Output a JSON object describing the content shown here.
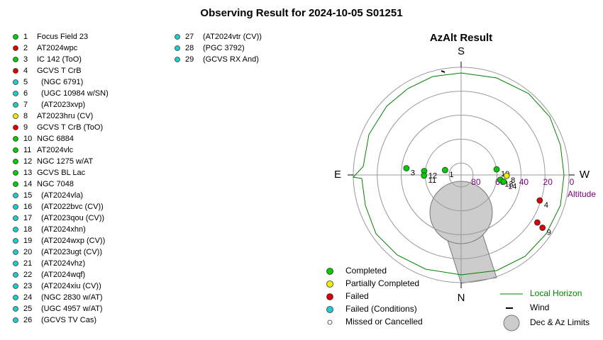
{
  "title": "Observing Result for 2024-10-05 S01251",
  "targets": [
    {
      "number": "1",
      "name": "Focus Field 23",
      "color": "#00cc00"
    },
    {
      "number": "2",
      "name": "AT2024wpc",
      "color": "#dd0000"
    },
    {
      "number": "3",
      "name": "IC 142 (ToO)",
      "color": "#00cc00"
    },
    {
      "number": "4",
      "name": "GCVS T CrB",
      "color": "#dd0000"
    },
    {
      "number": "5",
      "name": "(NGC 6791)",
      "color": "#22cccc"
    },
    {
      "number": "6",
      "name": "(UGC 10984 w/SN)",
      "color": "#22cccc"
    },
    {
      "number": "7",
      "name": "(AT2023xvp)",
      "color": "#22cccc"
    },
    {
      "number": "8",
      "name": "AT2023hru (CV)",
      "color": "#eeee00"
    },
    {
      "number": "9",
      "name": "GCVS T CrB (ToO)",
      "color": "#dd0000"
    },
    {
      "number": "10",
      "name": "NGC 6884",
      "color": "#00cc00"
    },
    {
      "number": "11",
      "name": "AT2024vlc",
      "color": "#00cc00"
    },
    {
      "number": "12",
      "name": "NGC 1275 w/AT",
      "color": "#00cc00"
    },
    {
      "number": "13",
      "name": "GCVS BL Lac",
      "color": "#00cc00"
    },
    {
      "number": "14",
      "name": "NGC 7048",
      "color": "#00cc00"
    },
    {
      "number": "15",
      "name": "(AT2024vla)",
      "color": "#22cccc"
    },
    {
      "number": "16",
      "name": "(AT2022bvc (CV))",
      "color": "#22cccc"
    },
    {
      "number": "17",
      "name": "(AT2023qou (CV))",
      "color": "#22cccc"
    },
    {
      "number": "18",
      "name": "(AT2024xhn)",
      "color": "#22cccc"
    },
    {
      "number": "19",
      "name": "(AT2024wxp (CV))",
      "color": "#22cccc"
    },
    {
      "number": "20",
      "name": "(AT2023ugt (CV))",
      "color": "#22cccc"
    },
    {
      "number": "21",
      "name": "(AT2024vhz)",
      "color": "#22cccc"
    },
    {
      "number": "22",
      "name": "(AT2024wqf)",
      "color": "#22cccc"
    },
    {
      "number": "23",
      "name": "(AT2024xiu (CV))",
      "color": "#22cccc"
    },
    {
      "number": "24",
      "name": "(NGC 2830 w/AT)",
      "color": "#22cccc"
    },
    {
      "number": "25",
      "name": "(UGC 4957 w/AT)",
      "color": "#22cccc"
    },
    {
      "number": "26",
      "name": "(GCVS TV Cas)",
      "color": "#22cccc"
    },
    {
      "number": "27",
      "name": "(AT2024vtr (CV))",
      "color": "#22cccc"
    },
    {
      "number": "28",
      "name": "(PGC 3792)",
      "color": "#22cccc"
    },
    {
      "number": "29",
      "name": "(GCVS RX And)",
      "color": "#22cccc"
    }
  ],
  "chart_data": {
    "type": "polar",
    "title": "AzAlt Result",
    "r_label": "Altitude",
    "rlim": [
      90,
      0
    ],
    "rticks": [
      80,
      60,
      40,
      20,
      0
    ],
    "directions": [
      {
        "label": "S",
        "az": 180
      },
      {
        "label": "N",
        "az": 0
      },
      {
        "label": "E",
        "az": 90
      },
      {
        "label": "W",
        "az": 270
      }
    ],
    "points": [
      {
        "label": "1",
        "az": 107,
        "alt": 76,
        "color": "#00cc00"
      },
      {
        "label": "3",
        "az": 97,
        "alt": 44,
        "color": "#00cc00"
      },
      {
        "label": "12",
        "az": 96,
        "alt": 59,
        "color": "#00cc00"
      },
      {
        "label": "11",
        "az": 89,
        "alt": 59,
        "color": "#00cc00"
      },
      {
        "label": "10",
        "az": 261,
        "alt": 60,
        "color": "#00cc00"
      },
      {
        "label": "8",
        "az": 271,
        "alt": 52,
        "color": "#eeee00"
      },
      {
        "label": "13",
        "az": 277,
        "alt": 57,
        "color": "#00cc00"
      },
      {
        "label": "14",
        "az": 279,
        "alt": 54,
        "color": "#00cc00"
      },
      {
        "label": "4",
        "az": 288,
        "alt": 21,
        "color": "#dd0000"
      },
      {
        "az": 302,
        "alt": 15,
        "color": "#dd0000"
      },
      {
        "label": "9",
        "az": 303,
        "alt": 9,
        "color": "#dd0000"
      }
    ],
    "legend": [
      {
        "label": "Completed",
        "color": "#00cc00"
      },
      {
        "label": "Partially Completed",
        "color": "#eeee00"
      },
      {
        "label": "Failed",
        "color": "#dd0000"
      },
      {
        "label": "Failed (Conditions)",
        "color": "#22cccc"
      },
      {
        "label": "Missed or Cancelled",
        "color": "#ffffff"
      }
    ],
    "horizon_label": "Local Horizon",
    "horizon_color": "#008000",
    "wind_label": "Wind",
    "limits_label": "Dec & Az Limits"
  }
}
